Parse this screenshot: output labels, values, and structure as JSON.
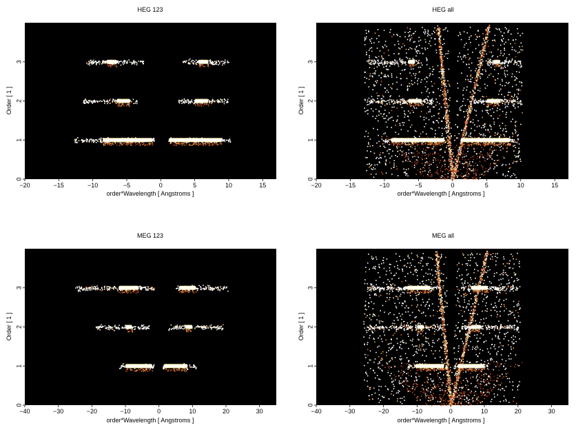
{
  "chart_data": [
    {
      "type": "heatmap",
      "title": "HEG 123",
      "xlabel": "order*Wavelength [ Angstroms ]",
      "ylabel": "Order [ 1 ]",
      "xlim": [
        -20,
        17
      ],
      "ylim": [
        0,
        4
      ],
      "xticks": [
        "−20",
        "−15",
        "−10",
        "−5",
        "0",
        "5",
        "10",
        "15"
      ],
      "xtick_values": [
        -20,
        -15,
        -10,
        -5,
        0,
        5,
        10,
        15
      ],
      "yticks": [
        "0",
        "1",
        "2",
        "3"
      ],
      "ytick_values": [
        0,
        1,
        2,
        3
      ],
      "background": "#000000",
      "bands": [
        {
          "order": 1,
          "segments": [
            [
              -12.8,
              -1.0
            ],
            [
              1.0,
              10.2
            ]
          ],
          "peak_segments": [
            [
              -8.5,
              -1.2
            ],
            [
              1.2,
              9.0
            ]
          ]
        },
        {
          "order": 2,
          "segments": [
            [
              -11.5,
              -3.5
            ],
            [
              2.5,
              9.8
            ]
          ],
          "peak_segments": [
            [
              -6.5,
              -4.5
            ],
            [
              5.0,
              7.0
            ]
          ]
        },
        {
          "order": 3,
          "segments": [
            [
              -11.0,
              -2.5
            ],
            [
              3.2,
              10.0
            ]
          ],
          "peak_segments": [
            [
              -8.0,
              -6.5
            ],
            [
              5.5,
              7.0
            ]
          ]
        }
      ],
      "wedge": false
    },
    {
      "type": "heatmap",
      "title": "HEG all",
      "xlabel": "order*Wavelength [ Angstroms ]",
      "ylabel": "Order [ 1 ]",
      "xlim": [
        -20,
        17
      ],
      "ylim": [
        0,
        4
      ],
      "xticks": [
        "−20",
        "−15",
        "−10",
        "−5",
        "0",
        "5",
        "10",
        "15"
      ],
      "xtick_values": [
        -20,
        -15,
        -10,
        -5,
        0,
        5,
        10,
        15
      ],
      "yticks": [
        "0",
        "1",
        "2",
        "3"
      ],
      "ytick_values": [
        0,
        1,
        2,
        3
      ],
      "background": "#000000",
      "bands": [
        {
          "order": 1,
          "segments": [
            [
              -10.0,
              -1.0
            ],
            [
              1.0,
              9.0
            ]
          ],
          "peak_segments": [
            [
              -9.0,
              -1.2
            ],
            [
              1.2,
              8.5
            ]
          ]
        },
        {
          "order": 2,
          "segments": [
            [
              -12.5,
              -3.0
            ],
            [
              3.0,
              10.0
            ]
          ],
          "peak_segments": [
            [
              -6.5,
              -4.5
            ],
            [
              5.0,
              7.0
            ]
          ]
        },
        {
          "order": 3,
          "segments": [
            [
              -12.5,
              -5.0
            ],
            [
              5.0,
              10.0
            ]
          ],
          "peak_segments": [
            [
              -6.5,
              -5.5
            ],
            [
              6.0,
              7.0
            ]
          ]
        }
      ],
      "wedge": true,
      "scatter_x_range": [
        -13.0,
        10.2
      ]
    },
    {
      "type": "heatmap",
      "title": "MEG 123",
      "xlabel": "order*Wavelength [ Angstroms ]",
      "ylabel": "Order [ 1 ]",
      "xlim": [
        -40,
        35
      ],
      "ylim": [
        0,
        4
      ],
      "xticks": [
        "−40",
        "−30",
        "−20",
        "−10",
        "0",
        "10",
        "20",
        "30"
      ],
      "xtick_values": [
        -40,
        -30,
        -20,
        -10,
        0,
        10,
        20,
        30
      ],
      "yticks": [
        "0",
        "1",
        "2",
        "3"
      ],
      "ytick_values": [
        0,
        1,
        2,
        3
      ],
      "background": "#000000",
      "bands": [
        {
          "order": 1,
          "segments": [
            [
              -12.0,
              -1.5
            ],
            [
              1.0,
              11.0
            ]
          ],
          "peak_segments": [
            [
              -10.0,
              -2.0
            ],
            [
              1.5,
              8.5
            ]
          ]
        },
        {
          "order": 2,
          "segments": [
            [
              -19.0,
              -3.0
            ],
            [
              2.5,
              19.0
            ]
          ],
          "peak_segments": [
            [
              -10.0,
              -8.0
            ],
            [
              8.0,
              10.0
            ]
          ]
        },
        {
          "order": 3,
          "segments": [
            [
              -25.5,
              -1.5
            ],
            [
              5.0,
              20.5
            ]
          ],
          "peak_segments": [
            [
              -12.0,
              -6.0
            ],
            [
              6.0,
              11.0
            ]
          ]
        }
      ],
      "wedge": false
    },
    {
      "type": "heatmap",
      "title": "MEG all",
      "xlabel": "order*Wavelength [ Angstroms ]",
      "ylabel": "Order [ 1 ]",
      "xlim": [
        -40,
        35
      ],
      "ylim": [
        0,
        4
      ],
      "xticks": [
        "−40",
        "−30",
        "−20",
        "−10",
        "0",
        "10",
        "20",
        "30"
      ],
      "xtick_values": [
        -40,
        -30,
        -20,
        -10,
        0,
        10,
        20,
        30
      ],
      "yticks": [
        "0",
        "1",
        "2",
        "3"
      ],
      "ytick_values": [
        0,
        1,
        2,
        3
      ],
      "background": "#000000",
      "bands": [
        {
          "order": 1,
          "segments": [
            [
              -13.0,
              -1.0
            ],
            [
              1.0,
              11.0
            ]
          ],
          "peak_segments": [
            [
              -10.5,
              -2.0
            ],
            [
              2.0,
              10.0
            ]
          ]
        },
        {
          "order": 2,
          "segments": [
            [
              -25.0,
              -3.0
            ],
            [
              3.0,
              20.0
            ]
          ],
          "peak_segments": [
            [
              -10.0,
              -8.0
            ],
            [
              6.0,
              9.0
            ]
          ]
        },
        {
          "order": 3,
          "segments": [
            [
              -25.0,
              -3.0
            ],
            [
              3.0,
              20.0
            ]
          ],
          "peak_segments": [
            [
              -13.0,
              -6.0
            ],
            [
              6.0,
              11.0
            ]
          ]
        }
      ],
      "wedge": true,
      "scatter_x_range": [
        -26.0,
        20.5
      ]
    }
  ]
}
